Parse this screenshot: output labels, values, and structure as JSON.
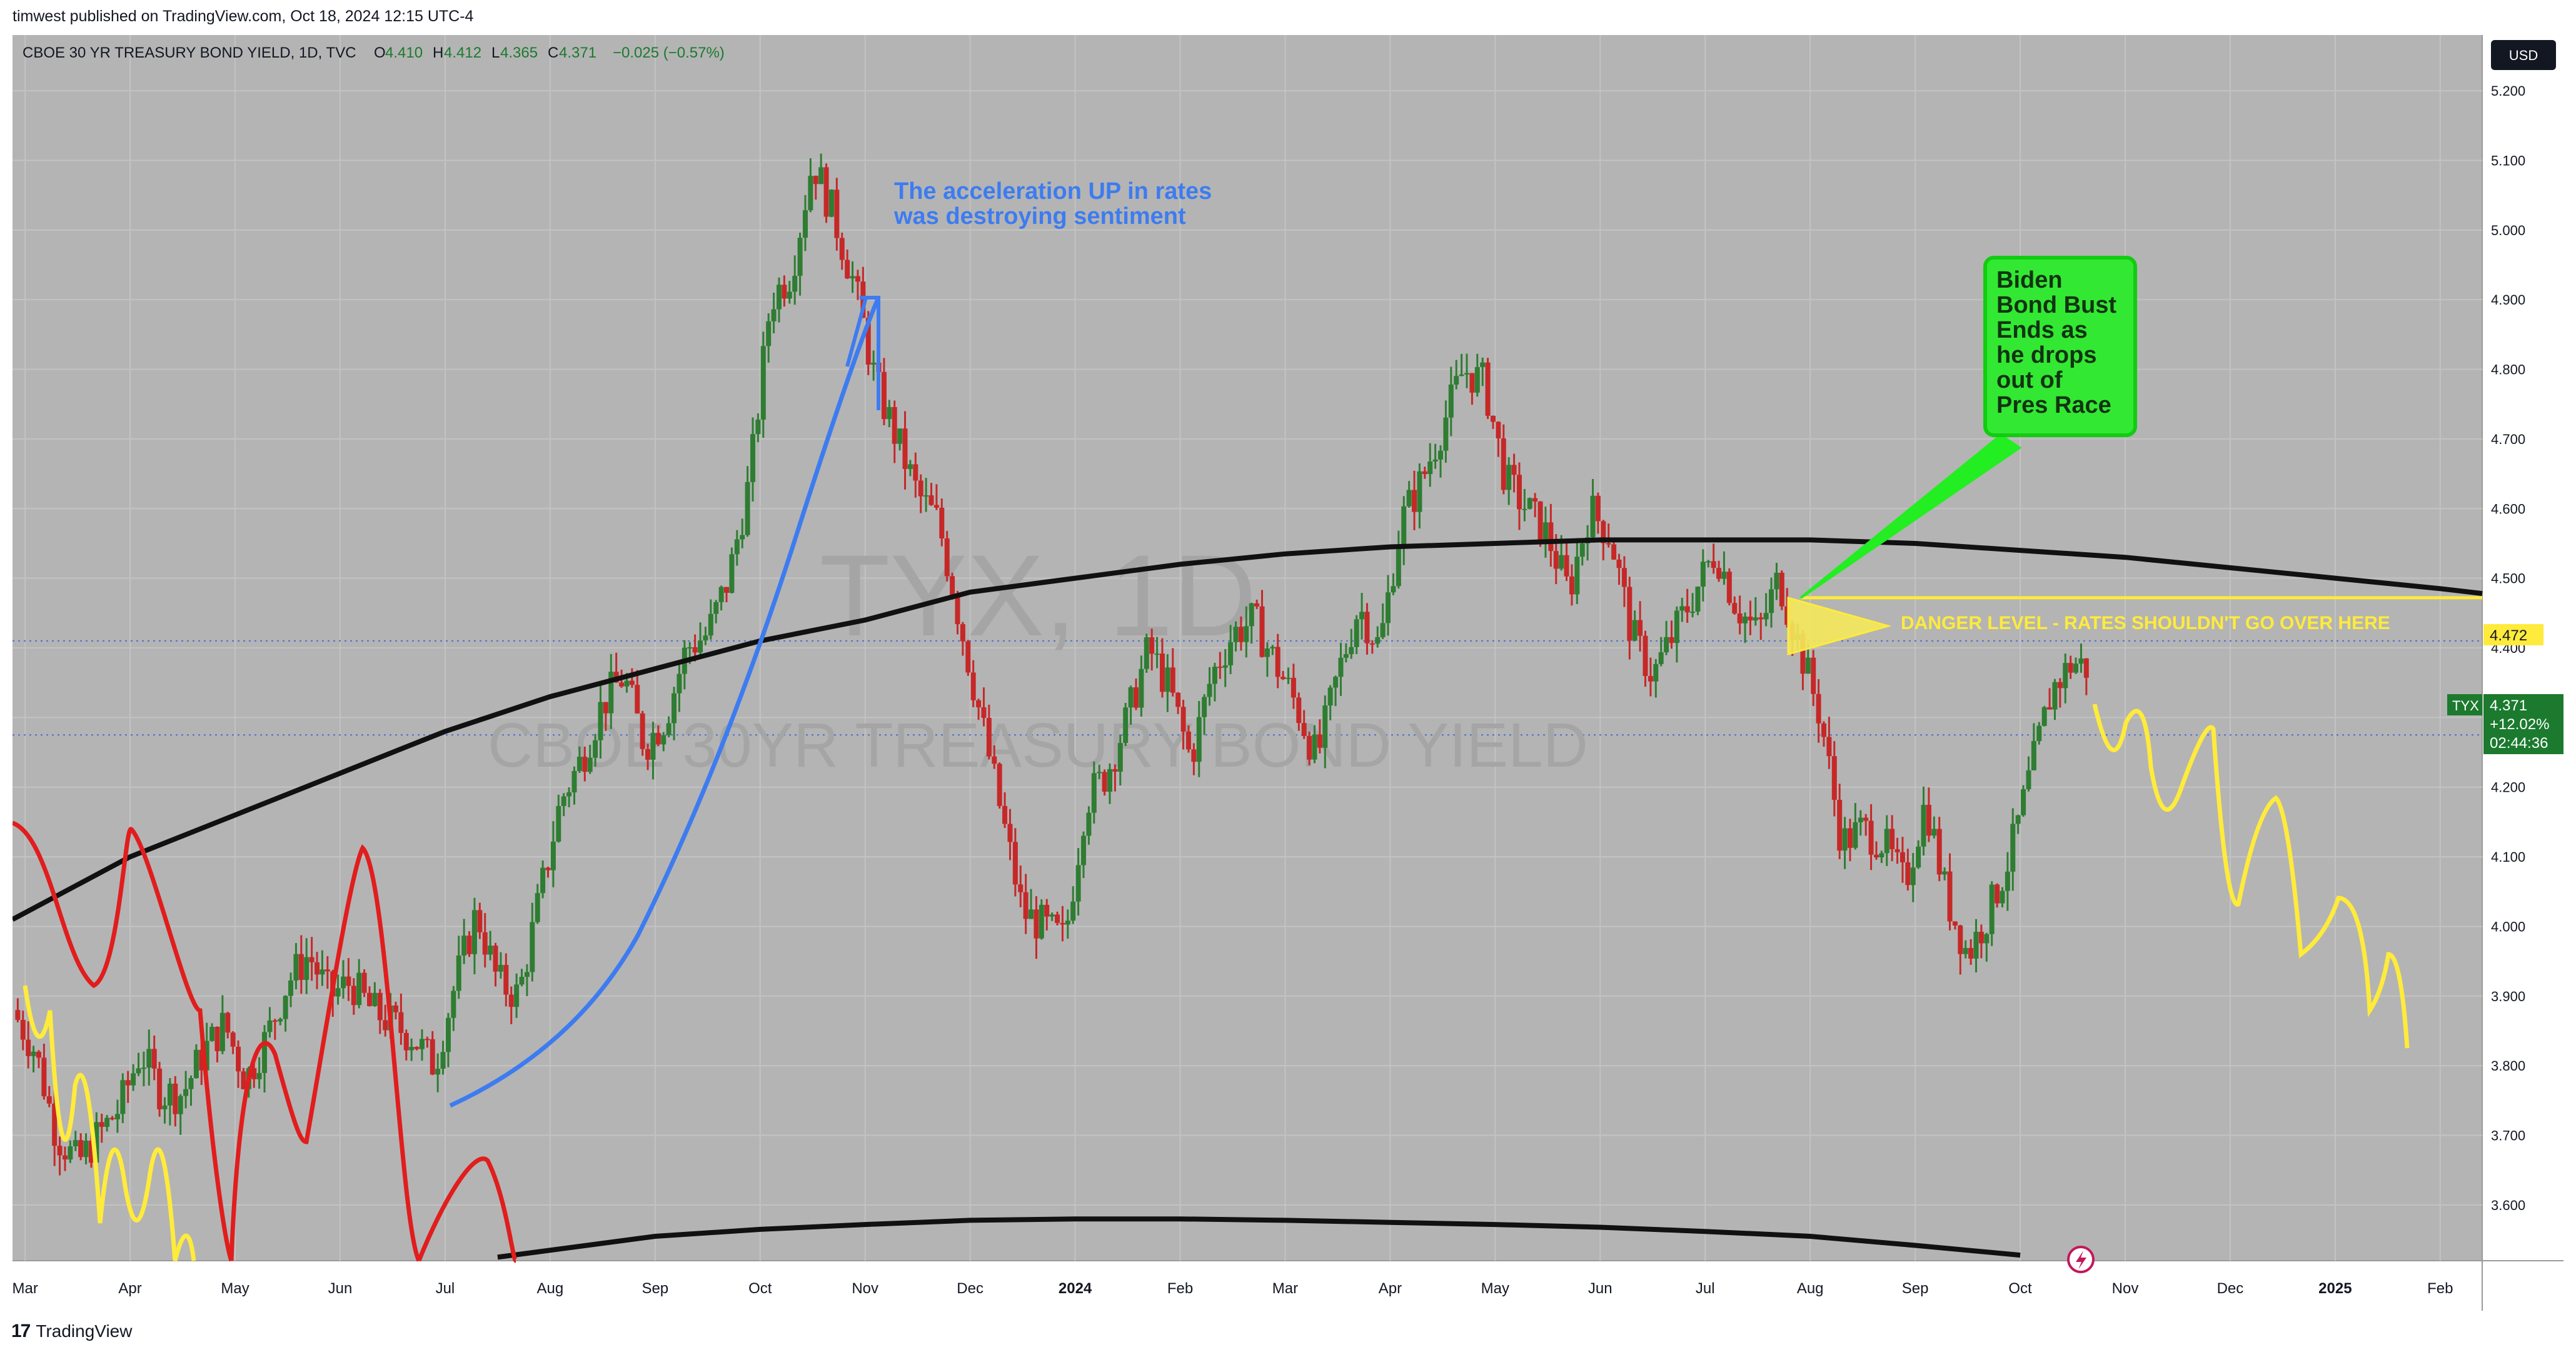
{
  "header": {
    "publisher": "timwest published on TradingView.com, Oct 18, 2024 12:15 UTC-4"
  },
  "footer": {
    "brand": "TradingView",
    "logo_glyph": "17"
  },
  "colors": {
    "background": "#b4b4b4",
    "up": "#2e7d32",
    "down": "#c62828",
    "up_fill": "#7fb3a0",
    "down_fill": "#d48a8a",
    "ma": "#111111",
    "blue": "#3d7cf0",
    "red": "#e11d1d",
    "yellow": "#ffeb3b",
    "green": "#22ee22"
  },
  "legend": {
    "symbol": "CBOE 30 YR TREASURY BOND YIELD, 1D, TVC",
    "o_label": "O",
    "o": "4.410",
    "h_label": "H",
    "h": "4.412",
    "l_label": "L",
    "l": "4.365",
    "c_label": "C",
    "c": "4.371",
    "change": "−0.025 (−0.57%)"
  },
  "watermark": {
    "symbol": "TYX, 1D",
    "name": "CBOE 30YR TREASURY BOND YIELD"
  },
  "currency": "USD",
  "price_tag": {
    "ticker": "TYX",
    "price": "4.371",
    "change": "+12.02%",
    "countdown": "02:44:36"
  },
  "danger_tag": "4.472",
  "chart_data": {
    "type": "candlestick",
    "ylim": [
      3.52,
      5.28
    ],
    "y_ticks": [
      3.6,
      3.7,
      3.8,
      3.9,
      4.0,
      4.1,
      4.2,
      4.3,
      4.4,
      4.5,
      4.6,
      4.7,
      4.8,
      4.9,
      5.0,
      5.1,
      5.2
    ],
    "y_tick_labels": [
      "3.600",
      "3.700",
      "3.800",
      "3.900",
      "4.000",
      "4.100",
      "4.200",
      "4.300",
      "4.400",
      "4.500",
      "4.600",
      "4.700",
      "4.800",
      "4.900",
      "5.000",
      "5.100",
      "5.200"
    ],
    "x_labels": [
      {
        "label": "Mar",
        "pos": 3.0
      },
      {
        "label": "Apr",
        "pos": 4.0
      },
      {
        "label": "May",
        "pos": 5.0
      },
      {
        "label": "Jun",
        "pos": 6.0
      },
      {
        "label": "Jul",
        "pos": 7.0
      },
      {
        "label": "Aug",
        "pos": 8.0
      },
      {
        "label": "Sep",
        "pos": 9.0
      },
      {
        "label": "Oct",
        "pos": 10.0
      },
      {
        "label": "Nov",
        "pos": 11.0
      },
      {
        "label": "Dec",
        "pos": 12.0
      },
      {
        "label": "2024",
        "pos": 13.0,
        "bold": true
      },
      {
        "label": "Feb",
        "pos": 14.0
      },
      {
        "label": "Mar",
        "pos": 15.0
      },
      {
        "label": "Apr",
        "pos": 16.0
      },
      {
        "label": "May",
        "pos": 17.0
      },
      {
        "label": "Jun",
        "pos": 18.0
      },
      {
        "label": "Jul",
        "pos": 19.0
      },
      {
        "label": "Aug",
        "pos": 20.0
      },
      {
        "label": "Sep",
        "pos": 21.0
      },
      {
        "label": "Oct",
        "pos": 22.0
      },
      {
        "label": "Nov",
        "pos": 23.0
      },
      {
        "label": "Dec",
        "pos": 24.0
      },
      {
        "label": "2025",
        "pos": 25.0,
        "bold": true
      },
      {
        "label": "Feb",
        "pos": 26.0
      }
    ],
    "x_range": [
      2.88,
      26.4
    ],
    "price_path": [
      [
        2.88,
        3.88
      ],
      [
        3.1,
        3.82
      ],
      [
        3.3,
        3.7
      ],
      [
        3.5,
        3.66
      ],
      [
        3.7,
        3.7
      ],
      [
        3.9,
        3.74
      ],
      [
        4.1,
        3.82
      ],
      [
        4.3,
        3.76
      ],
      [
        4.5,
        3.76
      ],
      [
        4.7,
        3.82
      ],
      [
        4.9,
        3.86
      ],
      [
        5.1,
        3.78
      ],
      [
        5.3,
        3.84
      ],
      [
        5.5,
        3.92
      ],
      [
        5.7,
        3.96
      ],
      [
        5.9,
        3.9
      ],
      [
        6.1,
        3.92
      ],
      [
        6.3,
        3.88
      ],
      [
        6.5,
        3.86
      ],
      [
        6.7,
        3.84
      ],
      [
        6.9,
        3.8
      ],
      [
        7.1,
        3.92
      ],
      [
        7.3,
        4.02
      ],
      [
        7.5,
        3.92
      ],
      [
        7.7,
        3.9
      ],
      [
        7.9,
        4.04
      ],
      [
        8.1,
        4.18
      ],
      [
        8.3,
        4.24
      ],
      [
        8.5,
        4.32
      ],
      [
        8.7,
        4.36
      ],
      [
        8.9,
        4.26
      ],
      [
        9.1,
        4.3
      ],
      [
        9.3,
        4.4
      ],
      [
        9.5,
        4.42
      ],
      [
        9.7,
        4.5
      ],
      [
        9.9,
        4.64
      ],
      [
        10.1,
        4.9
      ],
      [
        10.3,
        4.94
      ],
      [
        10.5,
        5.1
      ],
      [
        10.7,
        5.02
      ],
      [
        10.9,
        4.92
      ],
      [
        11.1,
        4.78
      ],
      [
        11.3,
        4.7
      ],
      [
        11.5,
        4.62
      ],
      [
        11.7,
        4.58
      ],
      [
        11.9,
        4.44
      ],
      [
        12.1,
        4.3
      ],
      [
        12.3,
        4.16
      ],
      [
        12.5,
        4.02
      ],
      [
        12.7,
        4.0
      ],
      [
        12.9,
        3.98
      ],
      [
        13.1,
        4.18
      ],
      [
        13.3,
        4.22
      ],
      [
        13.5,
        4.3
      ],
      [
        13.7,
        4.4
      ],
      [
        13.9,
        4.34
      ],
      [
        14.1,
        4.24
      ],
      [
        14.3,
        4.36
      ],
      [
        14.5,
        4.42
      ],
      [
        14.7,
        4.44
      ],
      [
        14.9,
        4.38
      ],
      [
        15.1,
        4.32
      ],
      [
        15.3,
        4.24
      ],
      [
        15.5,
        4.36
      ],
      [
        15.7,
        4.46
      ],
      [
        15.9,
        4.4
      ],
      [
        16.1,
        4.58
      ],
      [
        16.3,
        4.64
      ],
      [
        16.5,
        4.72
      ],
      [
        16.7,
        4.8
      ],
      [
        16.9,
        4.78
      ],
      [
        17.1,
        4.64
      ],
      [
        17.3,
        4.6
      ],
      [
        17.5,
        4.56
      ],
      [
        17.7,
        4.48
      ],
      [
        17.9,
        4.6
      ],
      [
        18.1,
        4.56
      ],
      [
        18.3,
        4.42
      ],
      [
        18.5,
        4.36
      ],
      [
        18.7,
        4.42
      ],
      [
        18.9,
        4.48
      ],
      [
        19.1,
        4.54
      ],
      [
        19.3,
        4.46
      ],
      [
        19.5,
        4.42
      ],
      [
        19.7,
        4.5
      ],
      [
        19.9,
        4.4
      ],
      [
        20.1,
        4.3
      ],
      [
        20.3,
        4.12
      ],
      [
        20.5,
        4.14
      ],
      [
        20.7,
        4.12
      ],
      [
        20.9,
        4.06
      ],
      [
        21.1,
        4.18
      ],
      [
        21.3,
        4.04
      ],
      [
        21.5,
        3.96
      ],
      [
        21.7,
        4.02
      ],
      [
        21.9,
        4.1
      ],
      [
        22.1,
        4.22
      ],
      [
        22.3,
        4.34
      ],
      [
        22.5,
        4.38
      ],
      [
        22.65,
        4.37
      ]
    ],
    "sma_long": [
      [
        2.88,
        4.01
      ],
      [
        4.0,
        4.1
      ],
      [
        5.0,
        4.16
      ],
      [
        6.0,
        4.22
      ],
      [
        7.0,
        4.28
      ],
      [
        8.0,
        4.33
      ],
      [
        9.0,
        4.37
      ],
      [
        10.0,
        4.41
      ],
      [
        11.0,
        4.44
      ],
      [
        12.0,
        4.48
      ],
      [
        13.0,
        4.5
      ],
      [
        14.0,
        4.52
      ],
      [
        15.0,
        4.535
      ],
      [
        16.0,
        4.545
      ],
      [
        17.0,
        4.55
      ],
      [
        18.0,
        4.555
      ],
      [
        19.0,
        4.555
      ],
      [
        20.0,
        4.555
      ],
      [
        21.0,
        4.55
      ],
      [
        22.0,
        4.54
      ],
      [
        23.0,
        4.53
      ],
      [
        24.0,
        4.515
      ],
      [
        25.0,
        4.5
      ],
      [
        26.0,
        4.485
      ],
      [
        26.4,
        4.478
      ]
    ],
    "sma_bottom": [
      [
        7.5,
        3.525
      ],
      [
        9.0,
        3.555
      ],
      [
        10.0,
        3.565
      ],
      [
        11.0,
        3.572
      ],
      [
        12.0,
        3.578
      ],
      [
        13.0,
        3.58
      ],
      [
        14.0,
        3.58
      ],
      [
        15.0,
        3.578
      ],
      [
        16.0,
        3.575
      ],
      [
        17.0,
        3.572
      ],
      [
        18.0,
        3.568
      ],
      [
        19.0,
        3.562
      ],
      [
        20.0,
        3.555
      ],
      [
        21.0,
        3.542
      ],
      [
        22.0,
        3.528
      ]
    ],
    "annotations": [
      {
        "kind": "text",
        "color": "#3d7cf0",
        "lines": [
          "The acceleration UP in rates",
          "was destroying sentiment"
        ]
      },
      {
        "kind": "callout",
        "color": "#22ee22",
        "lines": [
          "Biden",
          "Bond Bust",
          "Ends as",
          "he drops",
          "out of",
          "Pres Race"
        ]
      },
      {
        "kind": "level",
        "label": "DANGER LEVEL - RATES SHOULDN'T GO OVER HERE",
        "value": 4.472
      }
    ]
  }
}
